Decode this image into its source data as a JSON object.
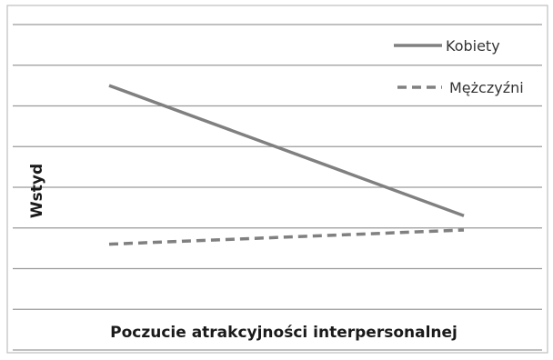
{
  "chart_data": {
    "type": "line",
    "title": "",
    "xlabel": "Poczucie atrakcyjności interpersonalnej",
    "ylabel": "Wstyd",
    "x": [
      0,
      1
    ],
    "ylim": [
      0,
      8
    ],
    "grid": true,
    "legend_position": "top-right",
    "series": [
      {
        "name": "Kobiety",
        "values": [
          6.5,
          3.3
        ],
        "color": "#808080",
        "line_style": "solid"
      },
      {
        "name": "Mężczyźni",
        "values": [
          2.6,
          2.95
        ],
        "color": "#808080",
        "line_style": "dashed"
      }
    ]
  }
}
